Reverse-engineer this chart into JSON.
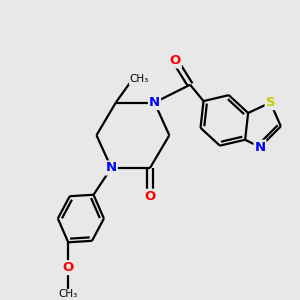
{
  "bg_color": "#e8e8e8",
  "bond_color": "#000000",
  "bond_width": 1.6,
  "atom_colors": {
    "N": "#0000ff",
    "O": "#ff0000",
    "S": "#cccc00",
    "C": "#000000"
  },
  "fs": 9.5
}
